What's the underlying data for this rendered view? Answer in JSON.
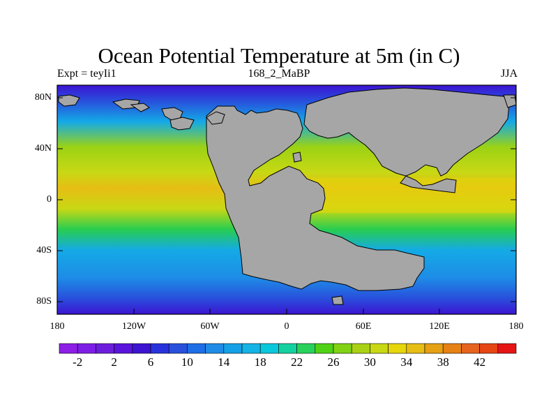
{
  "title": "Ocean Potential Temperature at 5m (in C)",
  "subtitle_left": "Expt = teyIi1",
  "subtitle_center": "168_2_MaBP",
  "subtitle_right": "JJA",
  "map": {
    "lat_labels": [
      "80N",
      "40N",
      "0",
      "40S",
      "80S"
    ],
    "lon_labels": [
      "180",
      "120W",
      "60W",
      "0",
      "60E",
      "120E",
      "180"
    ],
    "land_color": "#a6a6a6",
    "ocean_palette": [
      "#3c14d2",
      "#2850dc",
      "#1e8ce6",
      "#14aae6",
      "#28cd50",
      "#9bd214",
      "#c8d814",
      "#e6d60a",
      "#e6be14"
    ]
  },
  "colorbar": {
    "colors": [
      "#8c1ee6",
      "#7d1ee6",
      "#6c1edc",
      "#5a14dc",
      "#3c14d2",
      "#2832dc",
      "#2850dc",
      "#1e6ee6",
      "#1e8ce6",
      "#14a0e6",
      "#14b4e6",
      "#0ac8dc",
      "#14d2a0",
      "#28d25a",
      "#50d214",
      "#82d214",
      "#aad214",
      "#c8d814",
      "#e6d60a",
      "#e6be14",
      "#e6a014",
      "#e68214",
      "#e6641e",
      "#e64614",
      "#e61414"
    ],
    "labels": [
      "-2",
      "2",
      "6",
      "10",
      "14",
      "18",
      "22",
      "26",
      "30",
      "34",
      "38",
      "42"
    ]
  }
}
